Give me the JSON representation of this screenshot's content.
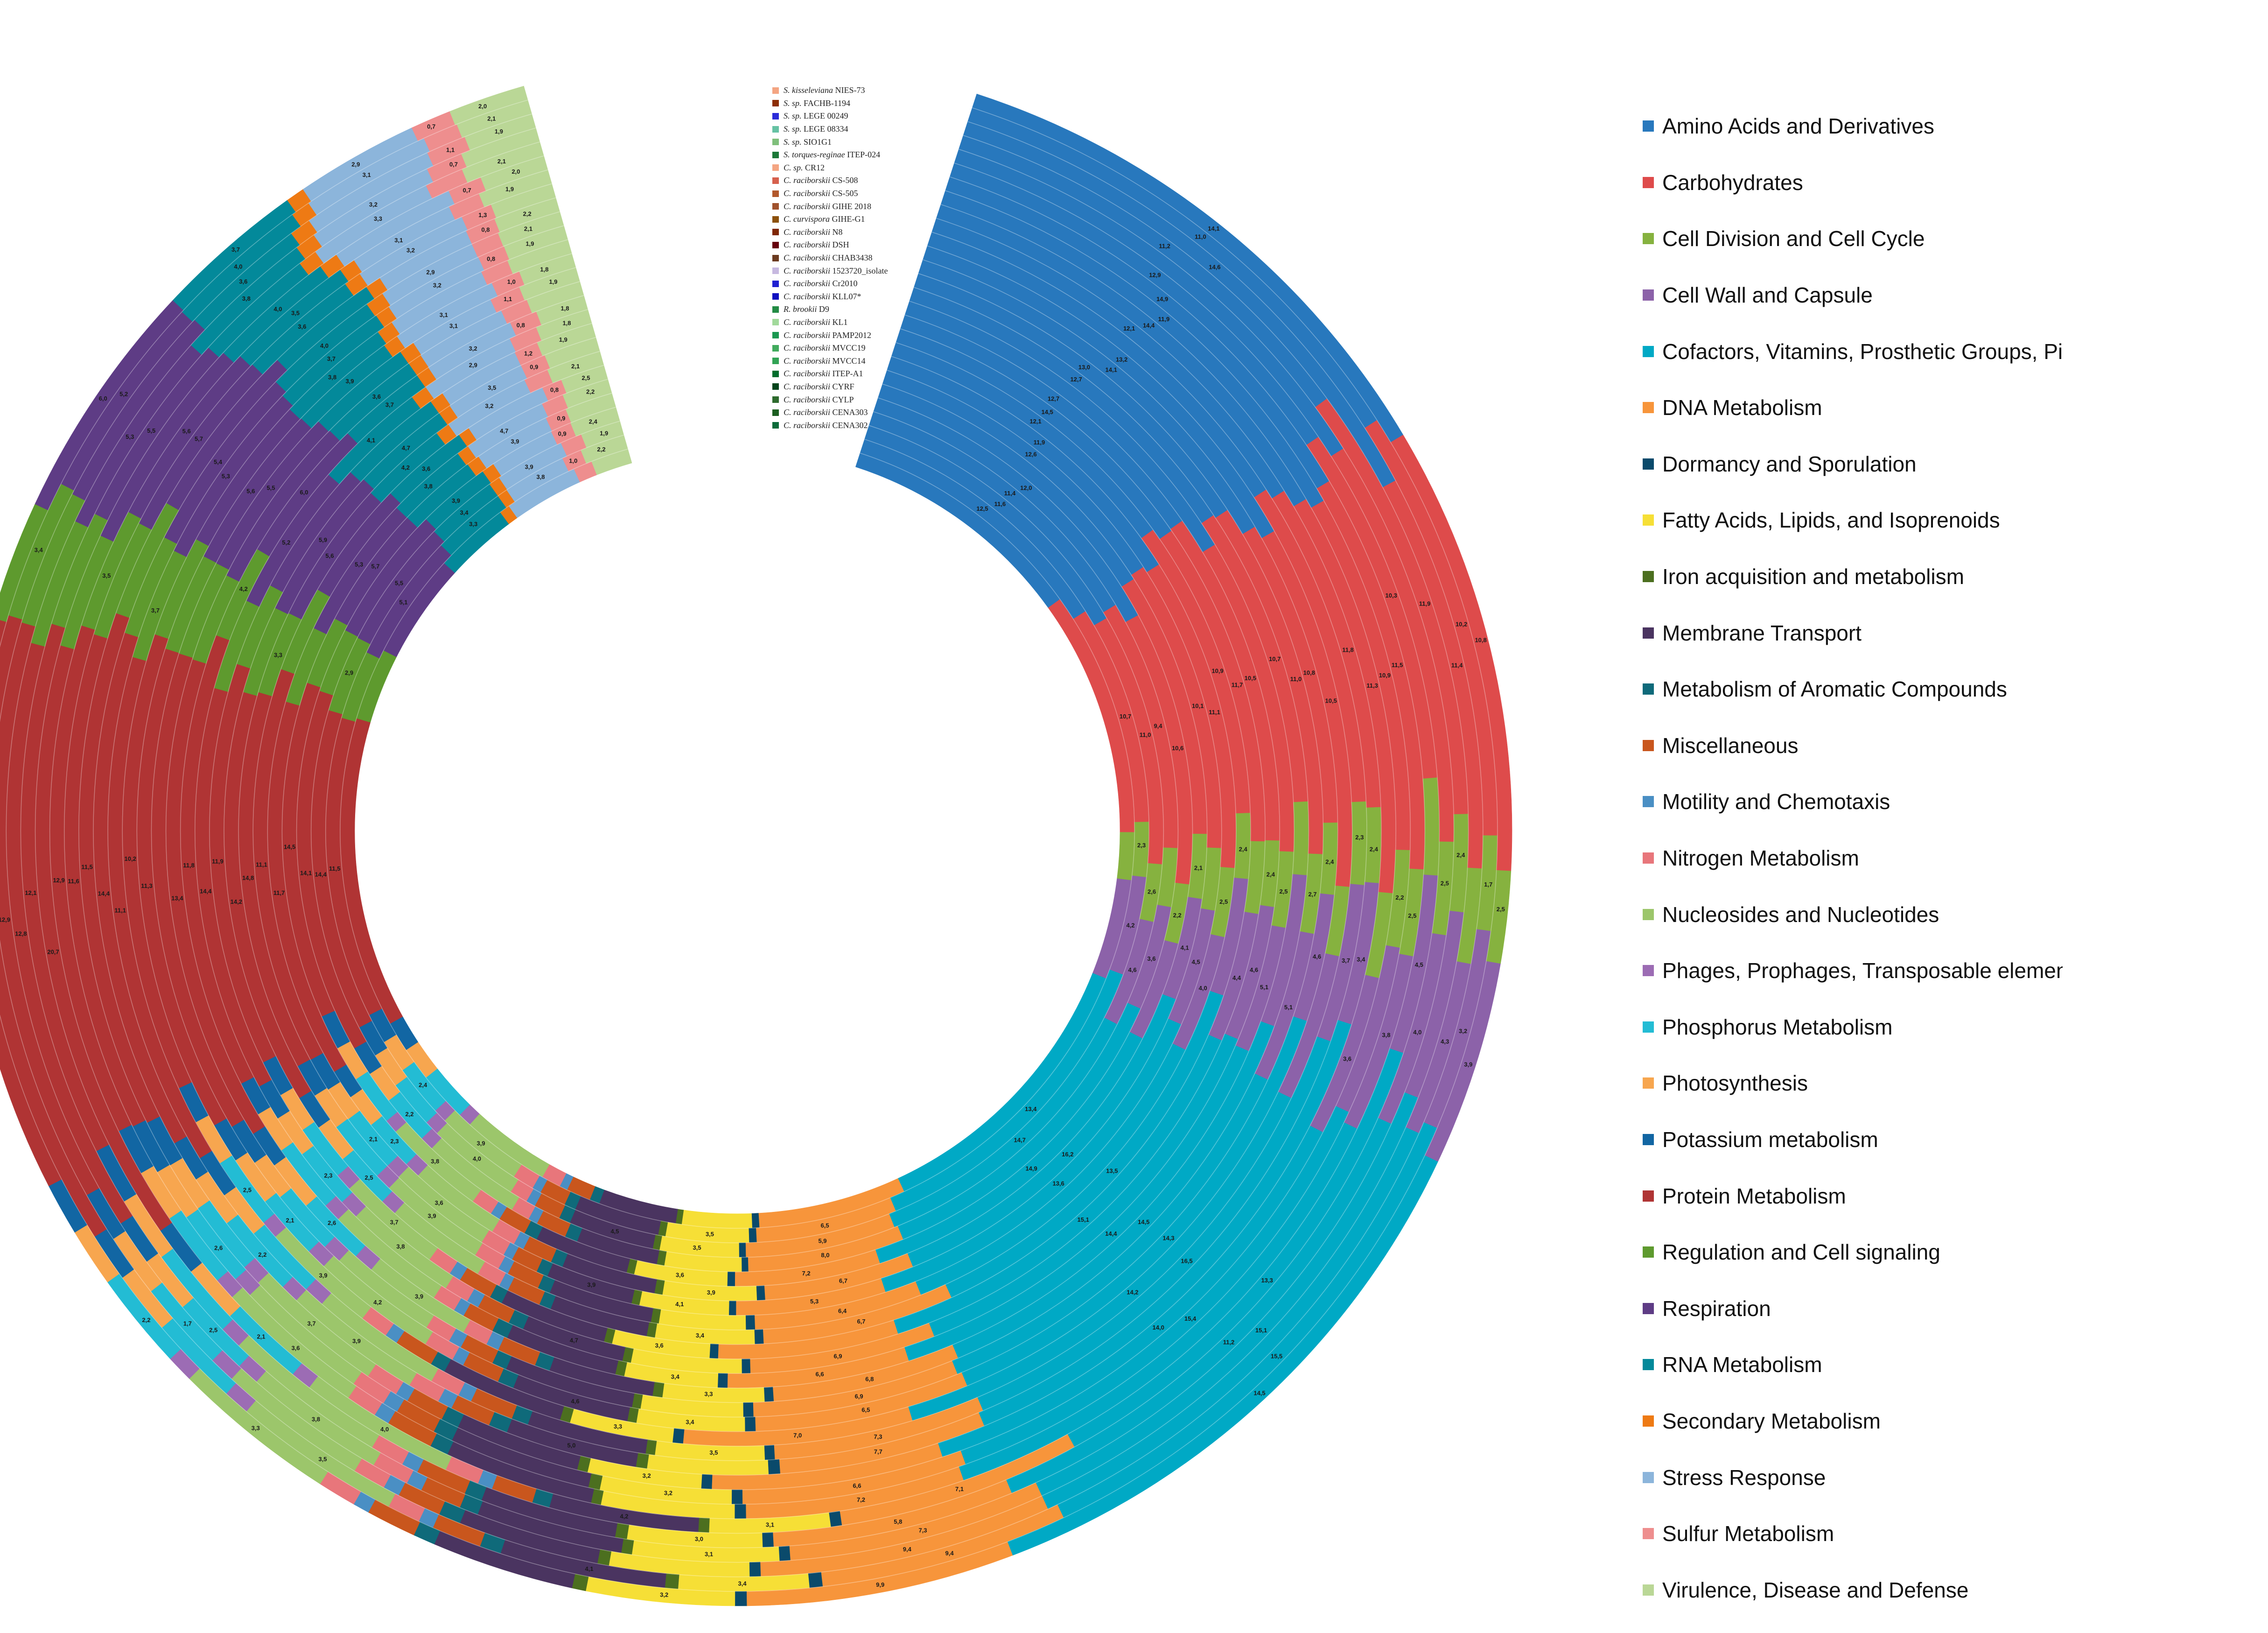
{
  "chart_data": {
    "type": "radial-stacked-bar",
    "strains": [
      {
        "name": "S. kisseleviana NIES-73",
        "color": "#f4a582"
      },
      {
        "name": "S. sp. FACHB-1194",
        "color": "#8c2d04"
      },
      {
        "name": "S. sp. LEGE 00249",
        "color": "#2b2bd9"
      },
      {
        "name": "S. sp. LEGE 08334",
        "color": "#66c2a4"
      },
      {
        "name": "S. sp. SIO1G1",
        "color": "#7fbf7b"
      },
      {
        "name": "S. torques-reginae ITEP-024",
        "color": "#1b7837"
      },
      {
        "name": "C. sp. CR12",
        "color": "#f4a582"
      },
      {
        "name": "C. raciborskii CS-508",
        "color": "#d6604d"
      },
      {
        "name": "C. raciborskii CS-505",
        "color": "#b2582b"
      },
      {
        "name": "C. raciborskii GIHE 2018",
        "color": "#a0522d"
      },
      {
        "name": "C. curvispora GIHE-G1",
        "color": "#8c510a"
      },
      {
        "name": "C. raciborskii N8",
        "color": "#7f2704"
      },
      {
        "name": "C. raciborskii DSH",
        "color": "#67000d"
      },
      {
        "name": "C. raciborskii CHAB3438",
        "color": "#6b3a1f"
      },
      {
        "name": "C. raciborskii 1523720_isolate",
        "color": "#c7b9e0"
      },
      {
        "name": "C. raciborskii Cr2010",
        "color": "#1f1fd1"
      },
      {
        "name": "C. raciborskii KLL07*",
        "color": "#1010c0"
      },
      {
        "name": "R. brookii D9",
        "color": "#238b45"
      },
      {
        "name": "C. raciborskii KL1",
        "color": "#a1d99b"
      },
      {
        "name": "C. raciborskii PAMP2012",
        "color": "#1a9850"
      },
      {
        "name": "C. raciborskii MVCC19",
        "color": "#41ab5d"
      },
      {
        "name": "C. raciborskii MVCC14",
        "color": "#31a354"
      },
      {
        "name": "C. raciborskii ITEP-A1",
        "color": "#006d2c"
      },
      {
        "name": "C. raciborskii CYRF",
        "color": "#00441b"
      },
      {
        "name": "C. raciborskii CYLP",
        "color": "#2e6b2e"
      },
      {
        "name": "C. raciborskii CENA303",
        "color": "#1b5e20"
      },
      {
        "name": "C. raciborskii CENA302",
        "color": "#0b6b3a"
      }
    ],
    "categories": [
      {
        "name": "Amino Acids and Derivatives",
        "color": "#2878bd",
        "value": 12.8
      },
      {
        "name": "Carbohydrates",
        "color": "#de4b4b",
        "value": 10.5
      },
      {
        "name": "Cell Division and Cell Cycle",
        "color": "#86b23f",
        "value": 2.4
      },
      {
        "name": "Cell Wall and Capsule",
        "color": "#8c62a9",
        "value": 4.5
      },
      {
        "name": "Cofactors, Vitamins, Prosthetic Groups, Pigments",
        "color": "#00a9c5",
        "value": 14.7
      },
      {
        "name": "DNA Metabolism",
        "color": "#f7953b",
        "value": 6.6
      },
      {
        "name": "Dormancy and Sporulation",
        "color": "#0a4a6b",
        "value": 0.3
      },
      {
        "name": "Fatty Acids, Lipids, and Isoprenoids",
        "color": "#f6df36",
        "value": 3.4
      },
      {
        "name": "Iron acquisition and metabolism",
        "color": "#4c6f1f",
        "value": 0.3
      },
      {
        "name": "Membrane Transport",
        "color": "#4a3460",
        "value": 3.8
      },
      {
        "name": "Metabolism of Aromatic Compounds",
        "color": "#0f6a7a",
        "value": 0.5
      },
      {
        "name": "Miscellaneous",
        "color": "#c9561d",
        "value": 1.2
      },
      {
        "name": "Motility and Chemotaxis",
        "color": "#4a8fc4",
        "value": 0.4
      },
      {
        "name": "Nitrogen Metabolism",
        "color": "#e8767b",
        "value": 0.9
      },
      {
        "name": "Nucleosides and Nucleotides",
        "color": "#9cc66b",
        "value": 3.9
      },
      {
        "name": "Phages, Prophages, Transposable elements, Plasmids",
        "color": "#9c6cb4",
        "value": 0.6
      },
      {
        "name": "Phosphorus Metabolism",
        "color": "#23bcd4",
        "value": 2.2
      },
      {
        "name": "Photosynthesis",
        "color": "#f7a64f",
        "value": 1.5
      },
      {
        "name": "Potassium metabolism",
        "color": "#1266a3",
        "value": 1.3
      },
      {
        "name": "Protein Metabolism",
        "color": "#b03434",
        "value": 14.6
      },
      {
        "name": "Regulation and Cell signaling",
        "color": "#5e9a2e",
        "value": 3.1
      },
      {
        "name": "Respiration",
        "color": "#5e3c85",
        "value": 5.3
      },
      {
        "name": "RNA Metabolism",
        "color": "#03899a",
        "value": 3.4
      },
      {
        "name": "Secondary Metabolism",
        "color": "#ee7a14",
        "value": 0.5
      },
      {
        "name": "Stress Response",
        "color": "#8cb5db",
        "value": 3.1
      },
      {
        "name": "Sulfur Metabolism",
        "color": "#ee8e8e",
        "value": 0.9
      },
      {
        "name": "Virulence, Disease and Defense",
        "color": "#bad796",
        "value": 1.9
      }
    ],
    "labels": [
      {
        "cat": "Amino Acids and Derivatives",
        "texts": [
          "12,5",
          "11,6",
          "11,4",
          "12,0",
          "12,6",
          "11,9",
          "12,1",
          "14,5",
          "12,7",
          "12,7",
          "13,0",
          "14,1",
          "13,2",
          "12,1",
          "14,4",
          "11,9",
          "14,9",
          "12,9",
          "11,2",
          "14,6",
          "11,0",
          "14,1"
        ]
      },
      {
        "cat": "Carbohydrates",
        "texts": [
          "10,7",
          "11,0",
          "9,4",
          "10,6",
          "10,1",
          "11,1",
          "10,9",
          "11,7",
          "10,5",
          "10,7",
          "11,0",
          "10,8",
          "10,5",
          "11,8",
          "11,3",
          "10,9",
          "11,5",
          "10,3",
          "11,9",
          "11,4",
          "10,2",
          "10,8"
        ]
      },
      {
        "cat": "Cell Division and Cell Cycle",
        "texts": [
          "2,3",
          "2,6",
          "2,2",
          "2,1",
          "2,5",
          "2,4",
          "2,4",
          "2,5",
          "2,7",
          "2,4",
          "2,3",
          "2,4",
          "2,2",
          "2,5",
          "2,5",
          "2,4",
          "1,7",
          "2,5"
        ]
      },
      {
        "cat": "Cell Wall and Capsule",
        "texts": [
          "4,2",
          "4,6",
          "3,6",
          "4,1",
          "4,5",
          "4,0",
          "4,4",
          "4,6",
          "5,1",
          "5,1",
          "4,6",
          "3,7",
          "3,4",
          "3,6",
          "3,8",
          "4,5",
          "4,0",
          "4,3",
          "3,2",
          "3,9"
        ]
      },
      {
        "cat": "Cofactors, Vitamins, Prosthetic Groups, Pigments",
        "texts": [
          "13,4",
          "14,7",
          "14,9",
          "16,2",
          "13,6",
          "13,5",
          "15,1",
          "14,4",
          "14,5",
          "14,3",
          "14,2",
          "16,5",
          "14,0",
          "15,4",
          "13,3",
          "11,2",
          "15,1",
          "15,5",
          "14,5"
        ]
      },
      {
        "cat": "DNA Metabolism",
        "texts": [
          "6,5",
          "5,9",
          "8,0",
          "7,2",
          "6,7",
          "5,3",
          "6,4",
          "6,7",
          "6,9",
          "6,6",
          "6,8",
          "6,9",
          "6,5",
          "7,0",
          "7,3",
          "7,7",
          "6,6",
          "7,2",
          "7,1",
          "5,8",
          "7,3",
          "9,4",
          "9,4",
          "9,9"
        ]
      },
      {
        "cat": "Fatty Acids, Lipids, and Isoprenoids",
        "texts": [
          "3,5",
          "3,5",
          "3,6",
          "3,9",
          "4,1",
          "3,4",
          "3,6",
          "3,4",
          "3,3",
          "3,4",
          "3,3",
          "3,5",
          "3,2",
          "3,2",
          "3,1",
          "3,0",
          "3,1",
          "3,4",
          "3,2"
        ]
      },
      {
        "cat": "Membrane Transport",
        "texts": [
          "4,5",
          "3,9",
          "4,7",
          "4,6",
          "5,0",
          "4,2",
          "4,1"
        ]
      },
      {
        "cat": "Nucleosides and Nucleotides",
        "texts": [
          "3,9",
          "4,0",
          "3,8",
          "3,6",
          "3,9",
          "3,7",
          "3,8",
          "3,9",
          "4,2",
          "3,9",
          "3,9",
          "3,7",
          "3,6",
          "4,0",
          "3,8",
          "3,5",
          "3,3"
        ]
      },
      {
        "cat": "Phosphorus Metabolism",
        "texts": [
          "2,4",
          "2,2",
          "2,3",
          "2,1",
          "2,5",
          "2,3",
          "2,6",
          "2,1",
          "2,5",
          "2,2",
          "2,6",
          "2,1",
          "2,5",
          "1,7",
          "2,2"
        ]
      },
      {
        "cat": "Protein Metabolism",
        "texts": [
          "11,5",
          "14,4",
          "14,1",
          "14,5",
          "11,7",
          "11,1",
          "14,8",
          "14,2",
          "11,9",
          "14,4",
          "11,8",
          "13,4",
          "11,3",
          "10,2",
          "11,1",
          "14,4",
          "11,5",
          "11,6",
          "12,9",
          "20,7",
          "12,1",
          "12,8",
          "12,9",
          "12,4",
          "12,7"
        ]
      },
      {
        "cat": "Regulation and Cell signaling",
        "texts": [
          "2,9",
          "3,3",
          "4,2",
          "3,7",
          "3,5",
          "3,4"
        ]
      },
      {
        "cat": "Respiration",
        "texts": [
          "5,1",
          "5,5",
          "5,7",
          "5,3",
          "5,6",
          "5,9",
          "5,2",
          "6,0",
          "5,5",
          "5,6",
          "5,3",
          "5,4",
          "5,7",
          "5,6",
          "5,5",
          "5,3",
          "5,2",
          "6,0"
        ]
      },
      {
        "cat": "RNA Metabolism",
        "texts": [
          "3,3",
          "3,4",
          "3,9",
          "3,8",
          "3,6",
          "4,2",
          "4,7",
          "4,1",
          "3,7",
          "3,6",
          "3,9",
          "3,8",
          "3,7",
          "4,0",
          "3,6",
          "3,5",
          "4,0",
          "3,8",
          "3,6",
          "4,0",
          "3,7"
        ]
      },
      {
        "cat": "Stress Response",
        "texts": [
          "3,8",
          "3,9",
          "3,9",
          "4,7",
          "3,2",
          "3,5",
          "2,9",
          "3,2",
          "3,1",
          "3,1",
          "3,2",
          "2,9",
          "3,2",
          "3,1",
          "3,3",
          "3,2",
          "3,1",
          "2,9"
        ]
      },
      {
        "cat": "Sulfur Metabolism",
        "texts": [
          "1,0",
          "0,9",
          "0,9",
          "0,8",
          "0,9",
          "1,2",
          "0,8",
          "1,1",
          "1,0",
          "0,8",
          "0,8",
          "1,3",
          "0,7",
          "0,7",
          "1,1",
          "0,7"
        ]
      },
      {
        "cat": "Virulence, Disease and Defense",
        "texts": [
          "2,2",
          "1,9",
          "2,4",
          "2,2",
          "2,5",
          "2,1",
          "1,9",
          "1,8",
          "1,8",
          "1,9",
          "1,8",
          "1,9",
          "2,1",
          "2,2",
          "1,9",
          "2,0",
          "2,1",
          "1,9",
          "2,1",
          "2,0"
        ]
      }
    ]
  }
}
